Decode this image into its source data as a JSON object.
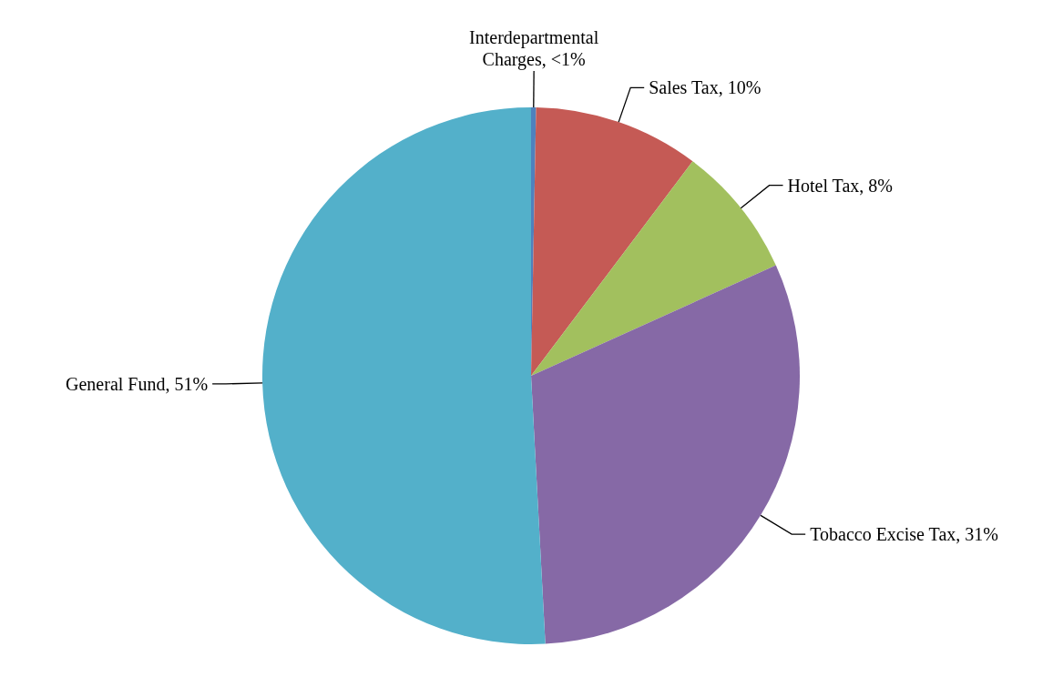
{
  "chart_data": {
    "type": "pie",
    "categories": [
      "Interdepartmental Charges",
      "Sales Tax",
      "Hotel Tax",
      "Tobacco Excise Tax",
      "General Fund"
    ],
    "values": [
      0.3,
      10,
      8,
      31,
      51
    ],
    "value_labels": [
      "<1%",
      "10%",
      "8%",
      "31%",
      "51%"
    ],
    "colors": [
      "#4f81bd",
      "#c55a55",
      "#a2c05e",
      "#8669a6",
      "#53b0ca"
    ],
    "legend": false
  }
}
